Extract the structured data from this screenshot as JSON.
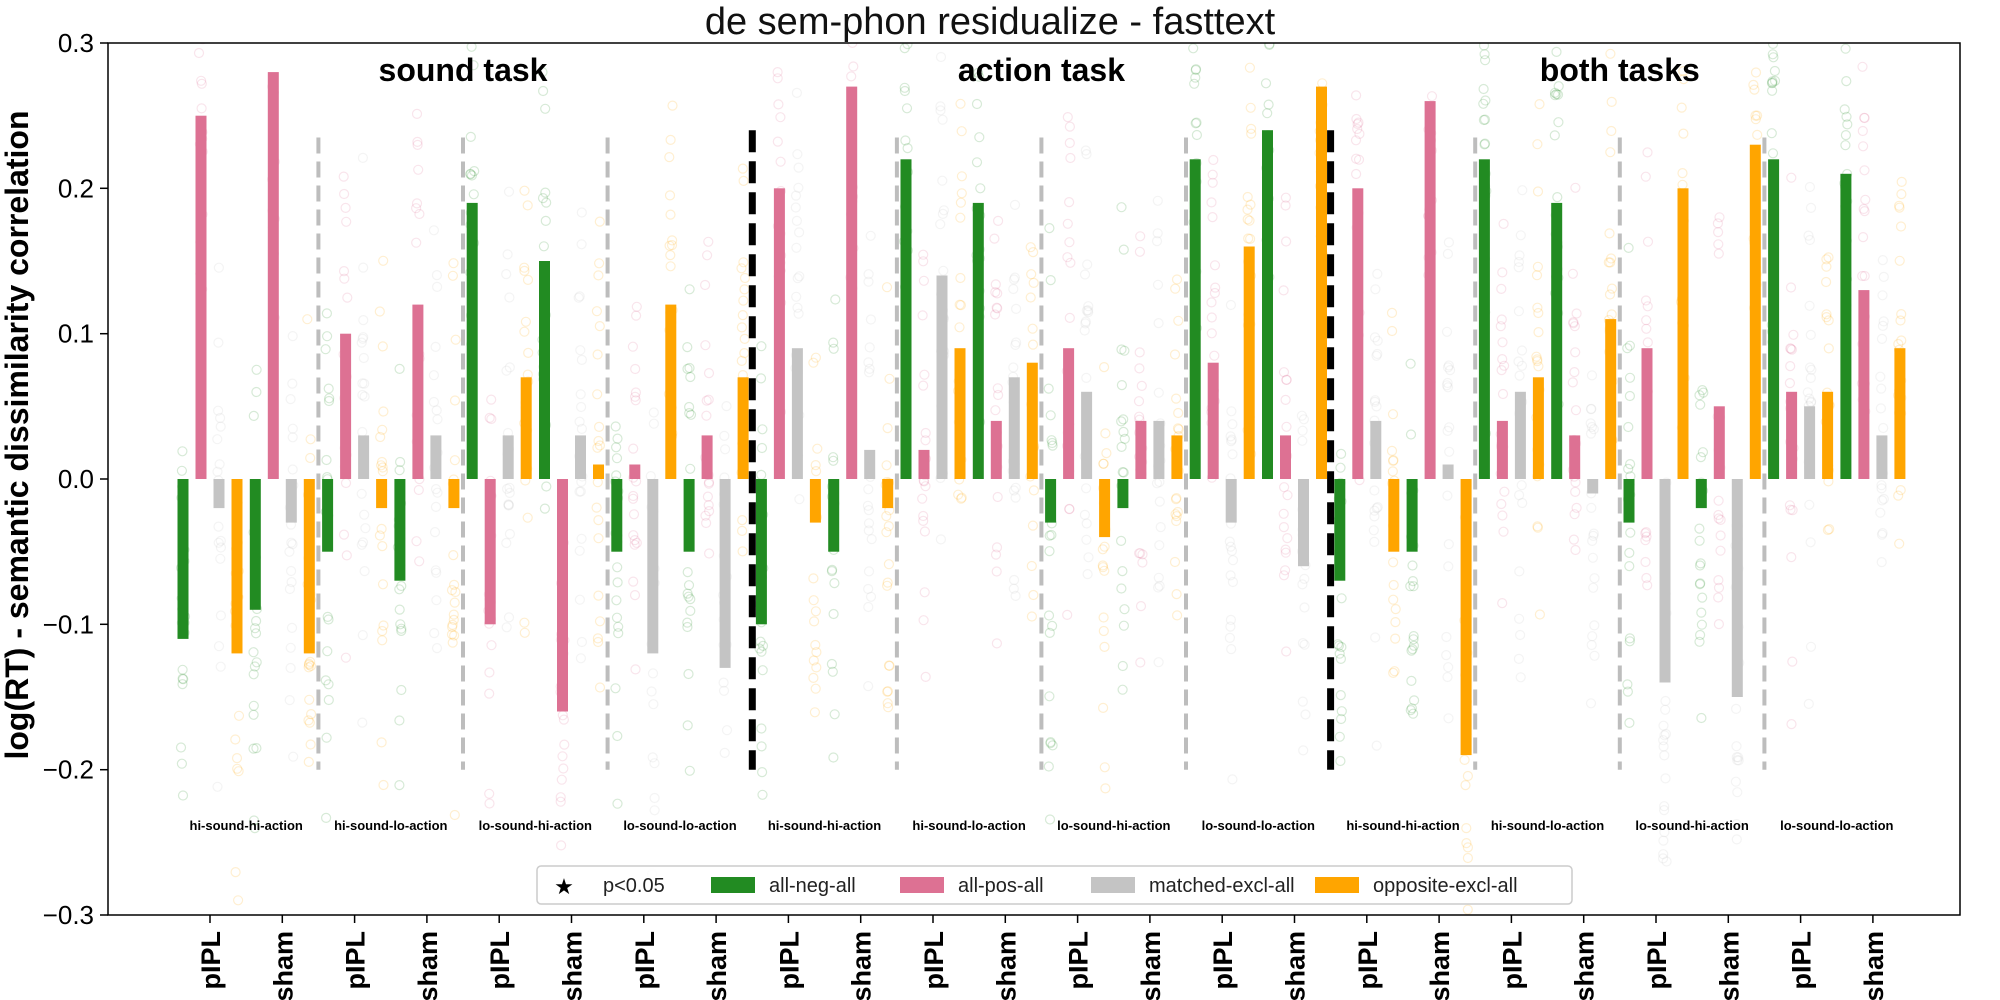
{
  "chart_data": {
    "type": "bar",
    "title": "de sem-phon residualize - fasttext",
    "ylabel": "log(RT) - semantic dissimilarity correlation",
    "xlabel": "",
    "ylim": [
      -0.3,
      0.3
    ],
    "yticks": [
      -0.3,
      -0.2,
      -0.1,
      0.0,
      0.1,
      0.2,
      0.3
    ],
    "ytick_labels": [
      "−0.3",
      "−0.2",
      "−0.1",
      "0.0",
      "0.1",
      "0.2",
      "0.3"
    ],
    "grid": false,
    "legend_position": "bottom-center",
    "tasks": [
      "sound task",
      "action task",
      "both tasks"
    ],
    "conditions": [
      "hi-sound-hi-action",
      "hi-sound-lo-action",
      "lo-sound-hi-action",
      "lo-sound-lo-action"
    ],
    "sessions": [
      "pIPL",
      "sham"
    ],
    "categories": [
      "pIPL",
      "sham",
      "pIPL",
      "sham",
      "pIPL",
      "sham",
      "pIPL",
      "sham",
      "pIPL",
      "sham",
      "pIPL",
      "sham",
      "pIPL",
      "sham",
      "pIPL",
      "sham",
      "pIPL",
      "sham",
      "pIPL",
      "sham",
      "pIPL",
      "sham",
      "pIPL",
      "sham"
    ],
    "series": [
      {
        "name": "all-neg-all",
        "color": "#228b22",
        "values": [
          -0.11,
          -0.09,
          -0.05,
          -0.07,
          0.19,
          0.15,
          -0.05,
          -0.05,
          -0.1,
          -0.05,
          0.22,
          0.19,
          -0.03,
          -0.02,
          0.22,
          0.24,
          -0.07,
          -0.05,
          0.22,
          0.19,
          -0.03,
          -0.02,
          0.22,
          0.21
        ]
      },
      {
        "name": "all-pos-all",
        "color": "#dd7193",
        "values": [
          0.25,
          0.28,
          0.1,
          0.12,
          -0.1,
          -0.16,
          0.01,
          0.03,
          0.2,
          0.27,
          0.02,
          0.04,
          0.09,
          0.04,
          0.08,
          0.03,
          0.2,
          0.26,
          0.04,
          0.03,
          0.09,
          0.05,
          0.06,
          0.13
        ]
      },
      {
        "name": "matched-excl-all",
        "color": "#c4c4c4",
        "values": [
          -0.02,
          -0.03,
          0.03,
          0.03,
          0.03,
          0.03,
          -0.12,
          -0.13,
          0.09,
          0.02,
          0.14,
          0.07,
          0.06,
          0.04,
          -0.03,
          -0.06,
          0.04,
          0.01,
          0.06,
          -0.01,
          -0.14,
          -0.15,
          0.05,
          0.03
        ]
      },
      {
        "name": "opposite-excl-all",
        "color": "#ffa500",
        "values": [
          -0.12,
          -0.12,
          -0.02,
          -0.02,
          0.07,
          0.01,
          0.12,
          0.07,
          -0.03,
          -0.02,
          0.09,
          0.08,
          -0.04,
          0.03,
          0.16,
          0.27,
          -0.05,
          -0.19,
          0.07,
          0.11,
          0.2,
          0.23,
          0.06,
          0.09
        ]
      }
    ],
    "separators": {
      "minor_ymin": -0.2,
      "minor_ymax": 0.235,
      "major_ymin": -0.2,
      "major_ymax": 0.24
    },
    "legend": [
      {
        "symbol": "star",
        "label": "p<0.05"
      },
      {
        "symbol": "swatch",
        "color": "#228b22",
        "label": "all-neg-all"
      },
      {
        "symbol": "swatch",
        "color": "#dd7193",
        "label": "all-pos-all"
      },
      {
        "symbol": "swatch",
        "color": "#c4c4c4",
        "label": "matched-excl-all"
      },
      {
        "symbol": "swatch",
        "color": "#ffa500",
        "label": "opposite-excl-all"
      }
    ]
  }
}
